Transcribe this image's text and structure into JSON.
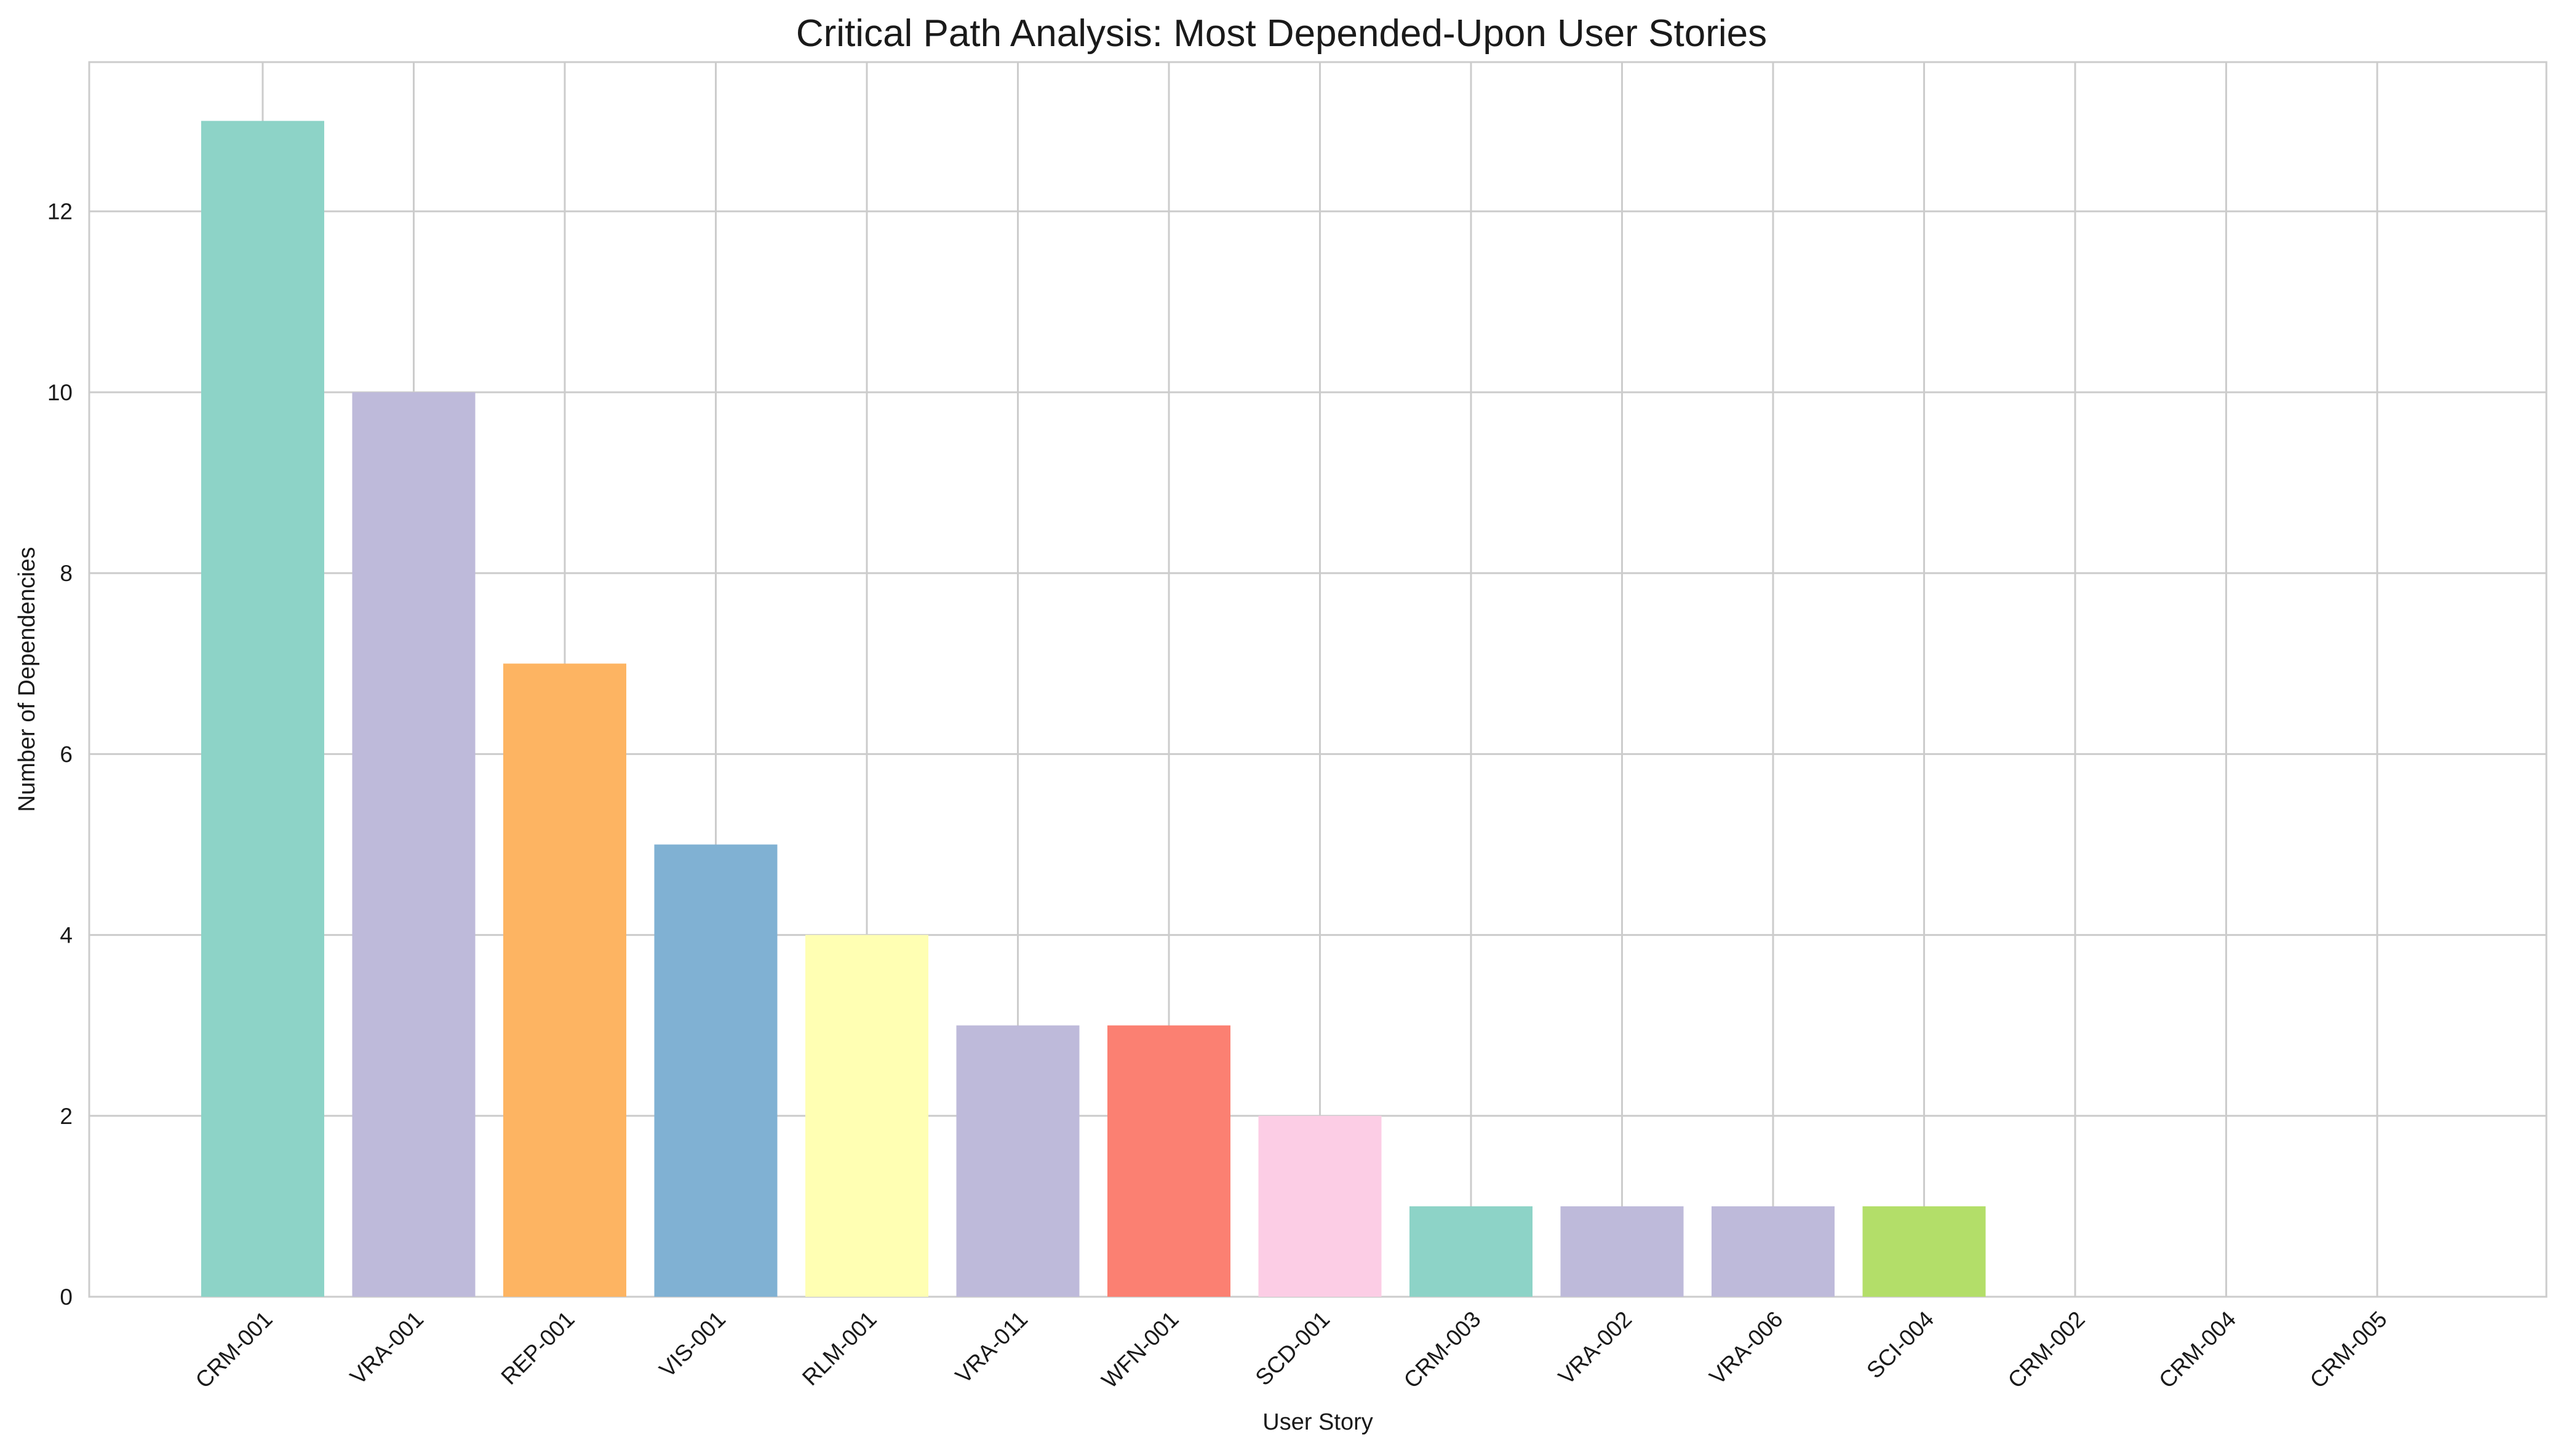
{
  "chart_data": {
    "type": "bar",
    "title": "Critical Path Analysis: Most Depended-Upon User Stories",
    "xlabel": "User Story",
    "ylabel": "Number of Dependencies",
    "categories": [
      "CRM-001",
      "VRA-001",
      "REP-001",
      "VIS-001",
      "RLM-001",
      "VRA-011",
      "WFN-001",
      "SCD-001",
      "CRM-003",
      "VRA-002",
      "VRA-006",
      "SCI-004",
      "CRM-002",
      "CRM-004",
      "CRM-005"
    ],
    "values": [
      13,
      10,
      7,
      5,
      4,
      3,
      3,
      2,
      1,
      1,
      1,
      1,
      0,
      0,
      0
    ],
    "colors": [
      "#8dd3c7",
      "#bebada",
      "#fdb462",
      "#80b1d3",
      "#ffffb3",
      "#bebada",
      "#fb8072",
      "#fccde5",
      "#8dd3c7",
      "#bebada",
      "#bebada",
      "#b3de69",
      "#8dd3c7",
      "#8dd3c7",
      "#8dd3c7"
    ],
    "yticks": [
      "0",
      "2",
      "4",
      "6",
      "8",
      "10",
      "12"
    ],
    "ylim": [
      0,
      13.65
    ],
    "grid": true,
    "legend": "none"
  }
}
